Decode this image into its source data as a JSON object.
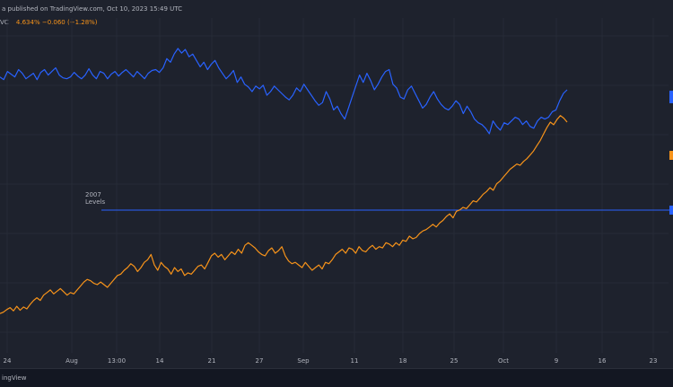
{
  "header": {
    "published": "a published on TradingView.com, Oct 10, 2023 15:49 UTC"
  },
  "legend": {
    "symbol": "VC",
    "values": "4.634%  −0.060 (−1.28%)"
  },
  "footer": {
    "brand": "ingView"
  },
  "colors": {
    "blue_series": "#2962ff",
    "orange_series": "#f7931a",
    "level_line": "#2962ff"
  },
  "chart_data": {
    "type": "line",
    "x_tick_labels": [
      "24",
      "Aug",
      "13:00",
      "14",
      "21",
      "27",
      "Sep",
      "11",
      "18",
      "25",
      "Oct",
      "9",
      "16",
      "23"
    ],
    "annotation": "2007\nLevels",
    "series": [
      {
        "color": "#2962ff",
        "y": [
          120,
          117,
          126,
          123,
          120,
          128,
          124,
          118,
          121,
          124,
          117,
          125,
          128,
          122,
          126,
          130,
          122,
          119,
          118,
          120,
          125,
          121,
          118,
          122,
          129,
          122,
          118,
          126,
          124,
          118,
          123,
          126,
          121,
          125,
          128,
          124,
          120,
          126,
          122,
          118,
          124,
          127,
          128,
          125,
          130,
          140,
          136,
          145,
          151,
          146,
          150,
          142,
          145,
          138,
          131,
          136,
          128,
          134,
          138,
          130,
          124,
          118,
          122,
          127,
          114,
          120,
          112,
          109,
          104,
          110,
          107,
          111,
          100,
          104,
          110,
          106,
          102,
          98,
          95,
          100,
          108,
          104,
          112,
          106,
          100,
          94,
          89,
          92,
          104,
          96,
          84,
          88,
          80,
          74,
          86,
          98,
          110,
          122,
          114,
          124,
          116,
          106,
          112,
          120,
          126,
          128,
          112,
          108,
          98,
          96,
          106,
          110,
          102,
          94,
          86,
          90,
          98,
          104,
          96,
          90,
          86,
          84,
          88,
          94,
          90,
          80,
          88,
          82,
          74,
          70,
          68,
          64,
          58,
          72,
          66,
          62,
          70,
          68,
          72,
          76,
          74,
          68,
          72,
          66,
          64,
          72,
          76,
          74,
          76,
          82,
          84,
          94,
          102,
          106
        ],
        "lo": 55,
        "hi": 153
      },
      {
        "color": "#f7931a",
        "y": [
          38,
          40,
          44,
          47,
          42,
          49,
          43,
          48,
          45,
          52,
          58,
          62,
          58,
          66,
          70,
          74,
          68,
          72,
          76,
          71,
          66,
          70,
          68,
          74,
          80,
          86,
          90,
          88,
          84,
          82,
          86,
          82,
          78,
          84,
          90,
          96,
          98,
          104,
          108,
          114,
          110,
          102,
          108,
          116,
          120,
          128,
          112,
          104,
          116,
          110,
          106,
          98,
          108,
          102,
          106,
          96,
          100,
          98,
          104,
          110,
          112,
          106,
          116,
          126,
          130,
          124,
          128,
          120,
          126,
          132,
          128,
          136,
          130,
          142,
          146,
          142,
          138,
          132,
          128,
          126,
          134,
          138,
          130,
          134,
          140,
          126,
          118,
          114,
          116,
          112,
          108,
          116,
          110,
          104,
          108,
          112,
          106,
          116,
          114,
          120,
          128,
          132,
          136,
          130,
          138,
          136,
          130,
          140,
          134,
          132,
          138,
          142,
          136,
          140,
          138,
          146,
          144,
          140,
          146,
          142,
          150,
          148,
          156,
          152,
          154,
          160,
          164,
          166,
          170,
          174,
          170,
          176,
          180,
          186,
          190,
          184,
          194,
          196,
          200,
          198,
          204,
          210,
          208,
          214,
          220,
          224,
          230,
          226,
          236,
          240,
          246,
          252,
          258,
          262,
          266,
          264,
          270,
          274,
          280,
          286,
          294,
          302,
          312,
          322,
          330,
          326,
          334,
          340,
          336,
          330
        ],
        "lo": 30,
        "hi": 345
      }
    ]
  }
}
